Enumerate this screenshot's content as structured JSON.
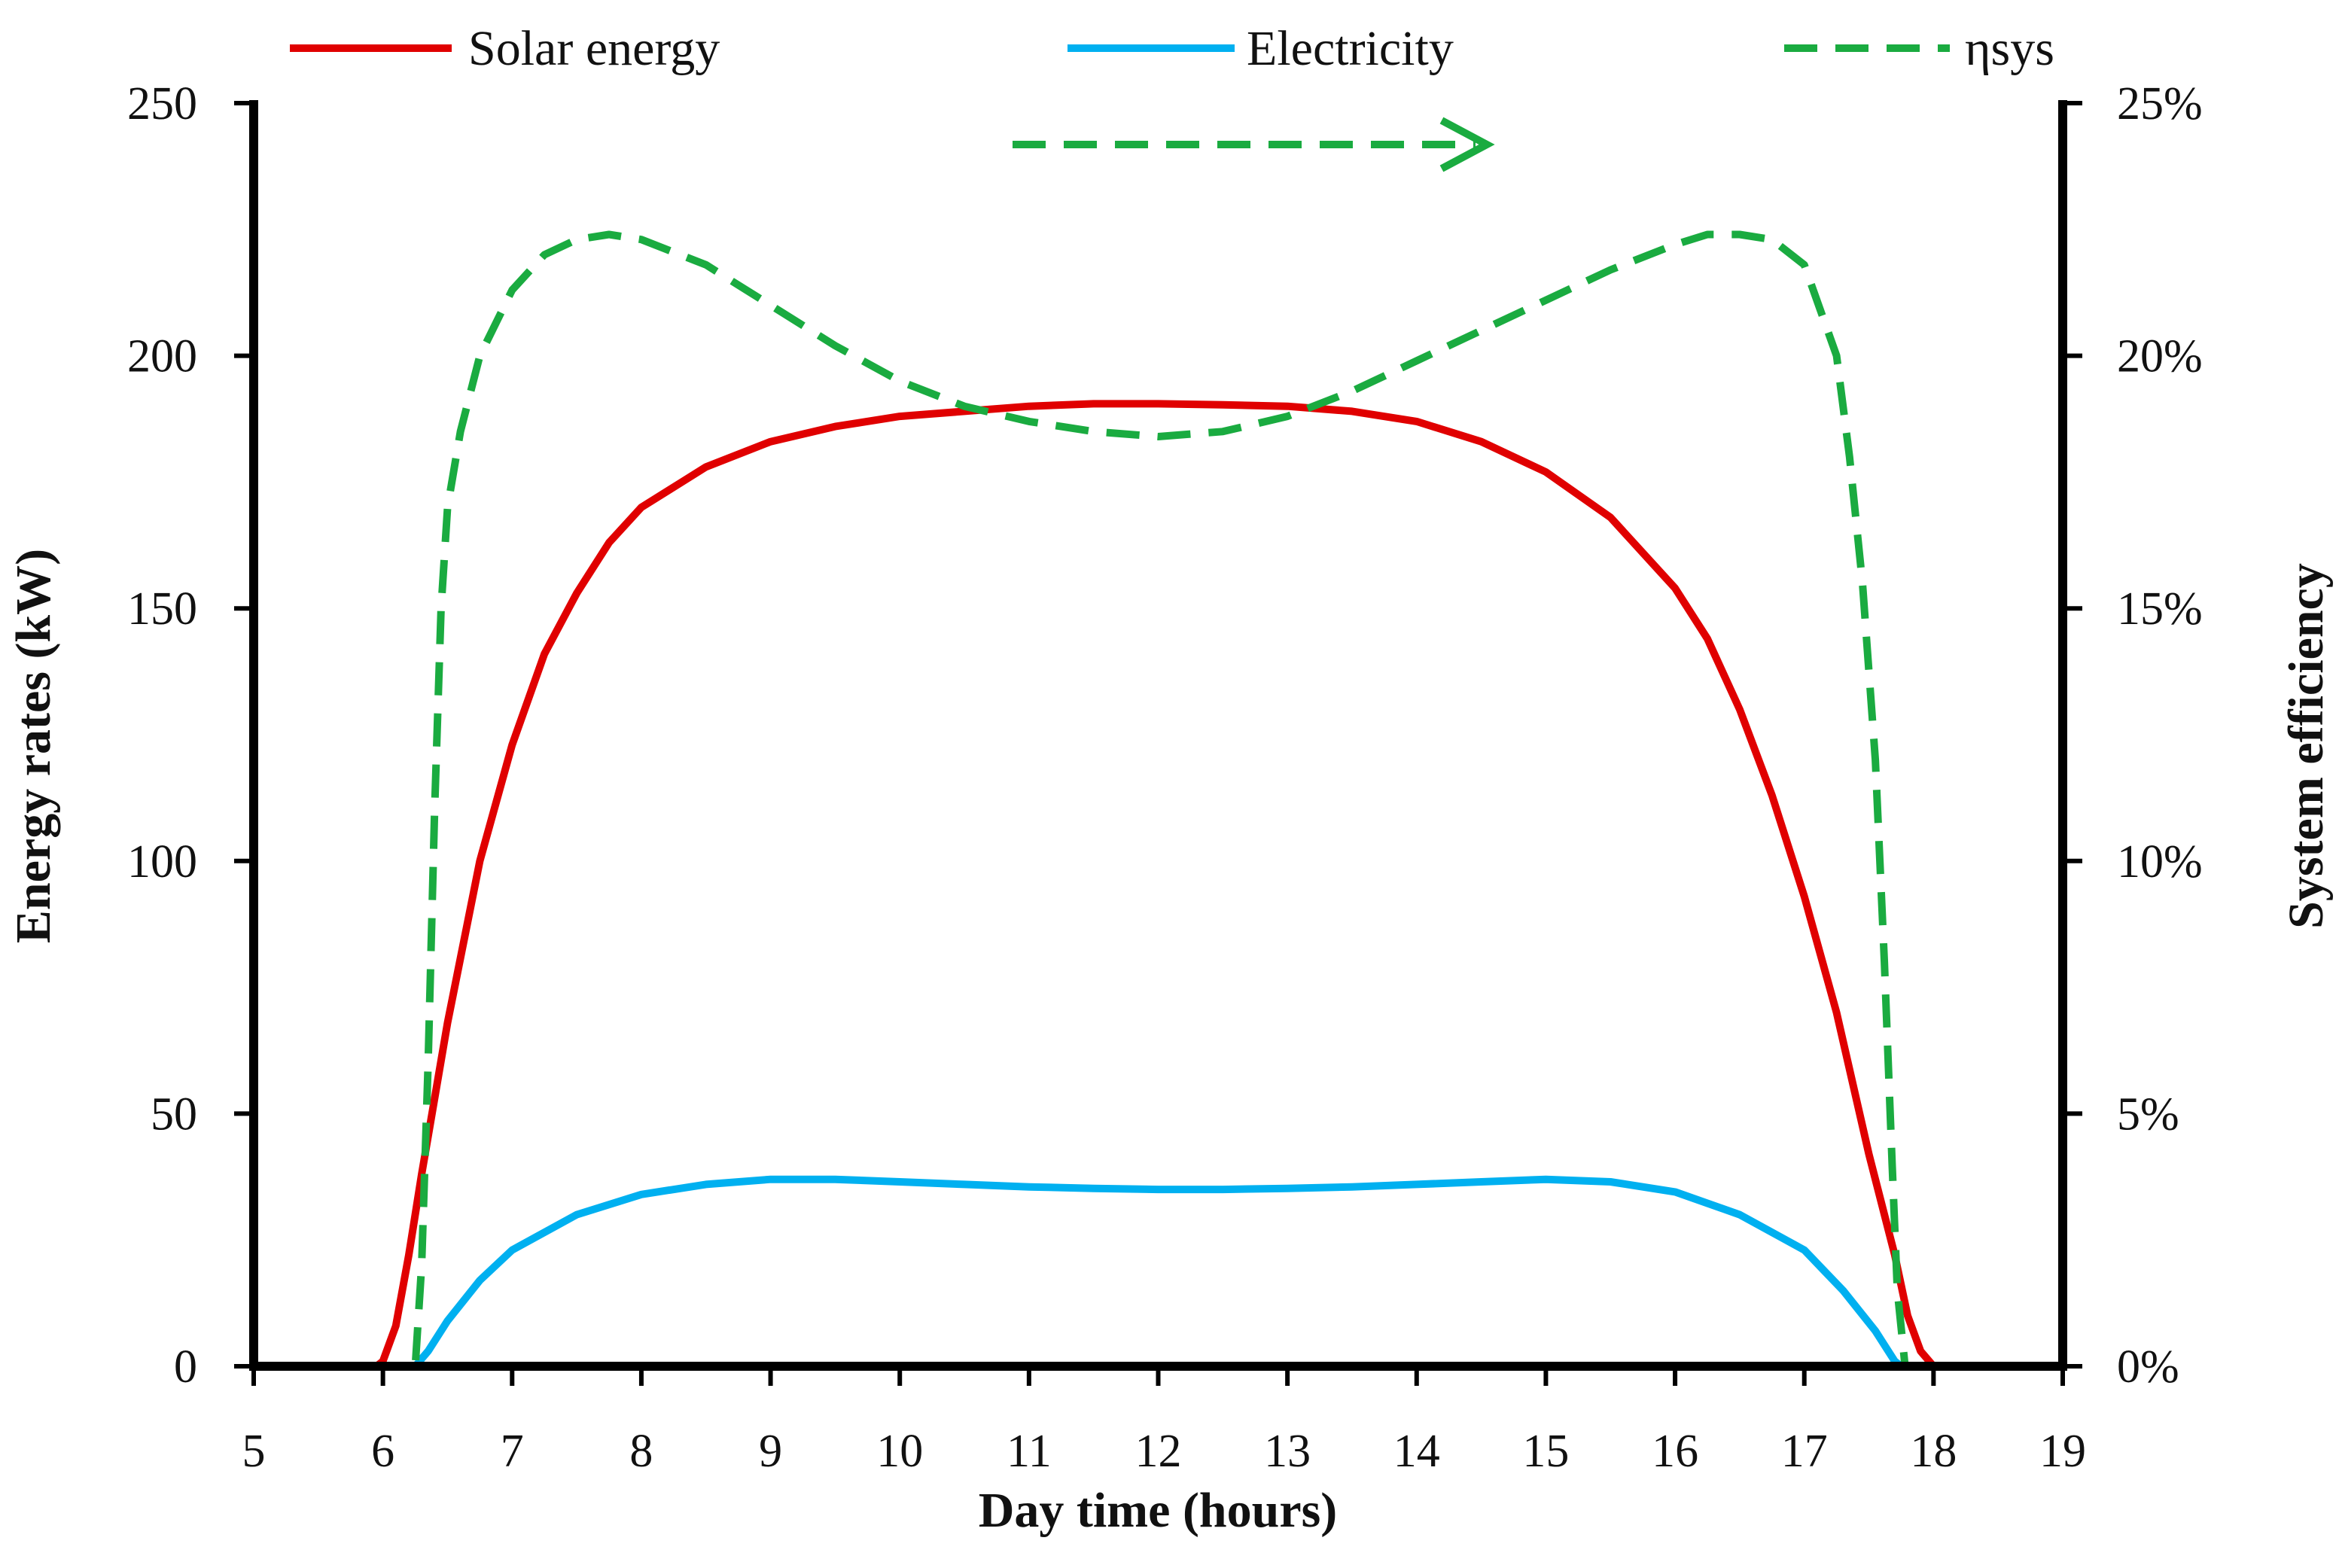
{
  "chart_data": {
    "type": "line",
    "title": "",
    "xlabel": "Day time (hours)",
    "ylabel": "Energy rates (kW)",
    "y2label": "System efficiency",
    "xlim": [
      5,
      19
    ],
    "ylim": [
      0,
      250
    ],
    "y2lim": [
      0,
      0.25
    ],
    "x_ticks": [
      "5",
      "6",
      "7",
      "8",
      "9",
      "10",
      "11",
      "12",
      "13",
      "14",
      "15",
      "16",
      "17",
      "18",
      "19"
    ],
    "y_ticks": [
      "0",
      "50",
      "100",
      "150",
      "200",
      "250"
    ],
    "y2_ticks": [
      "0%",
      "5%",
      "10%",
      "15%",
      "20%",
      "25%"
    ],
    "grid": false,
    "legend_position": "top",
    "annotation": "dashed arrow pointing right indicates the efficiency series uses the right axis",
    "series": [
      {
        "name": "Solar energy",
        "axis": "left",
        "color": "#e00000",
        "dash": "solid",
        "x": [
          5.95,
          6.0,
          6.1,
          6.2,
          6.3,
          6.5,
          6.75,
          7.0,
          7.25,
          7.5,
          7.75,
          8.0,
          8.5,
          9.0,
          9.5,
          10.0,
          10.5,
          11.0,
          11.5,
          12.0,
          12.5,
          13.0,
          13.5,
          14.0,
          14.5,
          15.0,
          15.5,
          16.0,
          16.25,
          16.5,
          16.75,
          17.0,
          17.25,
          17.5,
          17.7,
          17.8,
          17.9,
          18.0,
          18.1
        ],
        "y": [
          0,
          1,
          8,
          22,
          38,
          68,
          100,
          123,
          141,
          153,
          163,
          170,
          178,
          183,
          186,
          188,
          189,
          190,
          190.5,
          190.5,
          190.3,
          190,
          189,
          187,
          183,
          177,
          168,
          154,
          144,
          130,
          113,
          93,
          70,
          42,
          22,
          10,
          3,
          0,
          0
        ]
      },
      {
        "name": "Electricity",
        "axis": "left",
        "color": "#00b0f0",
        "dash": "solid",
        "x": [
          5.95,
          6.25,
          6.35,
          6.5,
          6.75,
          7.0,
          7.5,
          8.0,
          8.5,
          9.0,
          9.5,
          10.0,
          10.5,
          11.0,
          11.5,
          12.0,
          12.5,
          13.0,
          13.5,
          14.0,
          14.5,
          15.0,
          15.5,
          16.0,
          16.5,
          17.0,
          17.3,
          17.55,
          17.7,
          17.75,
          18.1
        ],
        "y": [
          0,
          0,
          3,
          9,
          17,
          23,
          30,
          34,
          36,
          37,
          37,
          36.5,
          36,
          35.5,
          35.2,
          35,
          35,
          35.2,
          35.5,
          36,
          36.5,
          37,
          36.5,
          34.5,
          30,
          23,
          15,
          7,
          1,
          0,
          0
        ]
      },
      {
        "name": "ηsys",
        "axis": "right",
        "color": "#1aab40",
        "dash": "dashed",
        "x": [
          5.9,
          6.25,
          6.3,
          6.35,
          6.4,
          6.45,
          6.5,
          6.6,
          6.75,
          7.0,
          7.25,
          7.5,
          7.75,
          8.0,
          8.5,
          9.0,
          9.5,
          10.0,
          10.5,
          11.0,
          11.5,
          12.0,
          12.5,
          13.0,
          13.5,
          14.0,
          14.5,
          15.0,
          15.5,
          16.0,
          16.25,
          16.5,
          16.75,
          17.0,
          17.25,
          17.35,
          17.45,
          17.55,
          17.62,
          17.68,
          17.72,
          17.78,
          18.1
        ],
        "y": [
          0,
          0.0,
          0.02,
          0.06,
          0.11,
          0.15,
          0.17,
          0.185,
          0.2,
          0.213,
          0.22,
          0.223,
          0.224,
          0.223,
          0.218,
          0.21,
          0.202,
          0.195,
          0.19,
          0.187,
          0.185,
          0.184,
          0.185,
          0.188,
          0.193,
          0.199,
          0.205,
          0.211,
          0.217,
          0.222,
          0.224,
          0.224,
          0.223,
          0.218,
          0.2,
          0.18,
          0.155,
          0.12,
          0.08,
          0.04,
          0.015,
          0.0,
          0.0
        ]
      }
    ]
  }
}
